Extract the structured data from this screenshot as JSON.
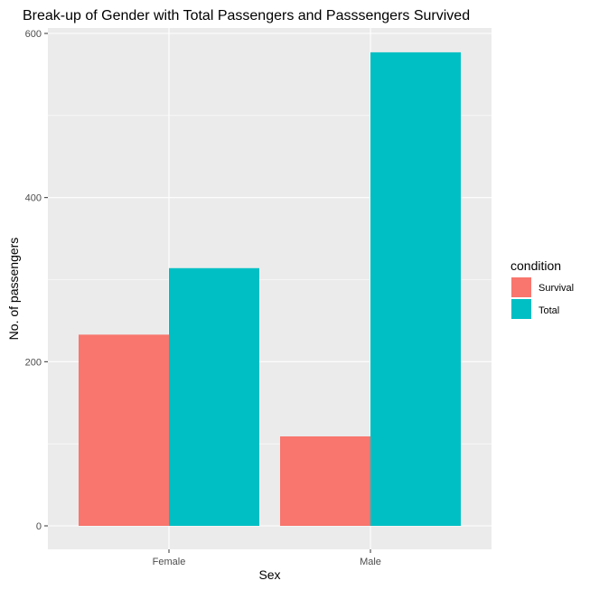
{
  "chart_data": {
    "type": "bar",
    "title": "Break-up of Gender with Total Passengers and Passsengers Survived",
    "xlabel": "Sex",
    "ylabel": "No. of passengers",
    "categories": [
      "Female",
      "Male"
    ],
    "series": [
      {
        "name": "Survival",
        "values": [
          233,
          109
        ],
        "color": "#F8766D"
      },
      {
        "name": "Total",
        "values": [
          314,
          577
        ],
        "color": "#00BFC4"
      }
    ],
    "ylim": [
      0,
      600
    ],
    "yticks": [
      0,
      200,
      400,
      600
    ],
    "grid": true,
    "legend": {
      "title": "condition",
      "position": "right"
    },
    "panel_background": "#EBEBEB"
  }
}
